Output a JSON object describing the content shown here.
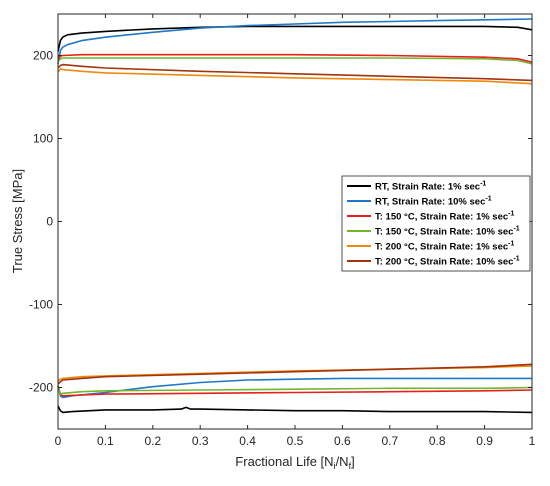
{
  "chart_data": {
    "type": "line",
    "title": "",
    "xlabel_parts": [
      "Fractional Life [N",
      "i",
      "/N",
      "f",
      "]"
    ],
    "ylabel": "True Stress [MPa]",
    "xlim": [
      0,
      1
    ],
    "ylim": [
      -250,
      250
    ],
    "xticks": [
      0,
      0.1,
      0.2,
      0.3,
      0.4,
      0.5,
      0.6,
      0.7,
      0.8,
      0.9,
      1
    ],
    "xtick_labels": [
      "0",
      "0.1",
      "0.2",
      "0.3",
      "0.4",
      "0.5",
      "0.6",
      "0.7",
      "0.8",
      "0.9",
      "1"
    ],
    "yticks": [
      -200,
      -100,
      0,
      100,
      200
    ],
    "ytick_labels": [
      "-200",
      "-100",
      "0",
      "100",
      "200"
    ],
    "grid": false,
    "legend_position": "right",
    "series": [
      {
        "name": "RT, Strain Rate: 1% sec",
        "name_sup": "-1",
        "color": "#000000",
        "upper": {
          "x": [
            0,
            0.005,
            0.01,
            0.02,
            0.05,
            0.1,
            0.2,
            0.3,
            0.4,
            0.5,
            0.6,
            0.7,
            0.8,
            0.9,
            0.97,
            1
          ],
          "y": [
            205,
            218,
            222,
            225,
            227,
            229,
            232,
            234,
            235,
            235,
            235,
            235,
            235,
            235,
            234,
            231
          ]
        },
        "lower": {
          "x": [
            0,
            0.005,
            0.01,
            0.03,
            0.1,
            0.2,
            0.26,
            0.27,
            0.28,
            0.3,
            0.4,
            0.5,
            0.6,
            0.7,
            0.8,
            0.9,
            1
          ],
          "y": [
            -222,
            -228,
            -230,
            -229,
            -227,
            -227,
            -226,
            -224,
            -226,
            -226,
            -227,
            -228,
            -228,
            -229,
            -229,
            -229,
            -230
          ]
        }
      },
      {
        "name": "RT, Strain Rate: 10% sec",
        "name_sup": "-1",
        "color": "#1f78c8",
        "upper": {
          "x": [
            0,
            0.005,
            0.01,
            0.02,
            0.05,
            0.1,
            0.2,
            0.3,
            0.4,
            0.5,
            0.6,
            0.7,
            0.8,
            0.9,
            1
          ],
          "y": [
            190,
            206,
            210,
            213,
            218,
            222,
            228,
            233,
            236,
            238,
            240,
            241,
            242,
            243,
            244
          ]
        },
        "lower": {
          "x": [
            0,
            0.005,
            0.01,
            0.03,
            0.1,
            0.2,
            0.3,
            0.4,
            0.5,
            0.6,
            0.7,
            0.8,
            0.9,
            1
          ],
          "y": [
            -198,
            -210,
            -212,
            -210,
            -206,
            -199,
            -194,
            -191,
            -190,
            -189,
            -189,
            -189,
            -189,
            -189
          ]
        }
      },
      {
        "name": "T: 150 °C, Strain Rate: 1% sec",
        "name_sup": "-1",
        "color": "#e8211d",
        "upper": {
          "x": [
            0,
            0.005,
            0.01,
            0.05,
            0.1,
            0.3,
            0.5,
            0.7,
            0.9,
            0.97,
            1
          ],
          "y": [
            195,
            199,
            200,
            201,
            201,
            201,
            201,
            200,
            198,
            196,
            192
          ]
        },
        "lower": {
          "x": [
            0,
            0.005,
            0.01,
            0.05,
            0.1,
            0.3,
            0.5,
            0.7,
            0.9,
            1
          ],
          "y": [
            -198,
            -208,
            -210,
            -209,
            -208,
            -207,
            -206,
            -205,
            -204,
            -203
          ]
        }
      },
      {
        "name": "T: 150 °C, Strain Rate: 10% sec",
        "name_sup": "-1",
        "color": "#72b62e",
        "upper": {
          "x": [
            0,
            0.005,
            0.01,
            0.05,
            0.1,
            0.3,
            0.5,
            0.7,
            0.9,
            0.97,
            1
          ],
          "y": [
            192,
            196,
            197,
            197,
            197,
            197,
            197,
            197,
            196,
            194,
            190
          ]
        },
        "lower": {
          "x": [
            0,
            0.005,
            0.01,
            0.05,
            0.1,
            0.3,
            0.5,
            0.7,
            0.9,
            1
          ],
          "y": [
            -200,
            -208,
            -207,
            -205,
            -204,
            -203,
            -202,
            -201,
            -201,
            -200
          ]
        }
      },
      {
        "name": "T: 200 °C, Strain Rate: 1% sec",
        "name_sup": "-1",
        "color": "#f0880e",
        "upper": {
          "x": [
            0,
            0.005,
            0.01,
            0.05,
            0.1,
            0.3,
            0.5,
            0.7,
            0.9,
            1
          ],
          "y": [
            180,
            184,
            183,
            181,
            179,
            176,
            173,
            171,
            169,
            166
          ]
        },
        "lower": {
          "x": [
            0,
            0.005,
            0.01,
            0.05,
            0.1,
            0.3,
            0.5,
            0.7,
            0.9,
            1
          ],
          "y": [
            -192,
            -190,
            -189,
            -187,
            -186,
            -183,
            -180,
            -178,
            -176,
            -174
          ]
        }
      },
      {
        "name": "T: 200 °C, Strain Rate: 10% sec",
        "name_sup": "-1",
        "color": "#a0350f",
        "upper": {
          "x": [
            0,
            0.005,
            0.01,
            0.05,
            0.1,
            0.3,
            0.5,
            0.7,
            0.9,
            1
          ],
          "y": [
            185,
            188,
            189,
            187,
            185,
            181,
            178,
            175,
            172,
            170
          ]
        },
        "lower": {
          "x": [
            0,
            0.005,
            0.01,
            0.05,
            0.1,
            0.3,
            0.5,
            0.7,
            0.9,
            1
          ],
          "y": [
            -196,
            -193,
            -191,
            -189,
            -187,
            -184,
            -181,
            -178,
            -175,
            -172
          ]
        }
      }
    ]
  }
}
